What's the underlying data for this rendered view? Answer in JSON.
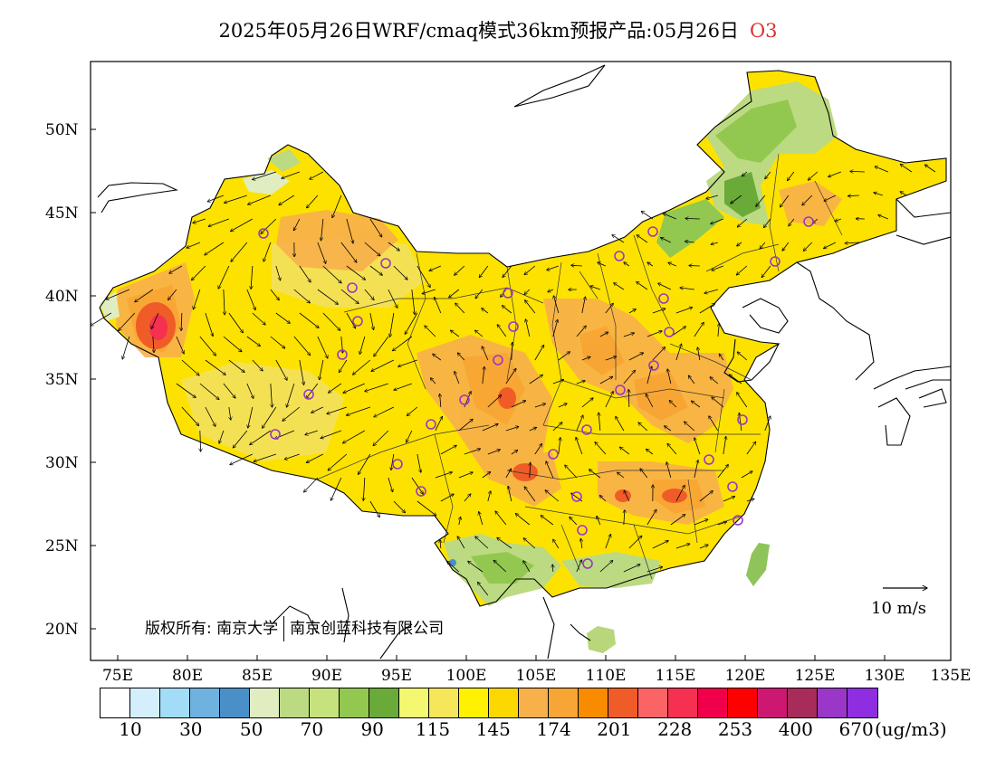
{
  "title": {
    "text": "2025年05月26日WRF/cmaq模式36km预报产品:05月26日",
    "species": "O3",
    "species_color": "#e03030"
  },
  "axes": {
    "y_labels": [
      "50N",
      "45N",
      "40N",
      "35N",
      "30N",
      "25N",
      "20N"
    ],
    "x_labels": [
      "75E",
      "80E",
      "85E",
      "90E",
      "95E",
      "100E",
      "105E",
      "110E",
      "115E",
      "120E",
      "125E",
      "130E",
      "135E"
    ]
  },
  "copyright": {
    "part1": "版权所有: 南京大学",
    "part2": "南京创蓝科技有限公司"
  },
  "wind_reference": {
    "label": "10 m/s"
  },
  "colorbar": {
    "colors": [
      "#ffffff",
      "#d4eefc",
      "#a2dcf7",
      "#6fb2e0",
      "#4a90c8",
      "#e0edc0",
      "#bcda82",
      "#c6e27c",
      "#92c850",
      "#6aaa38",
      "#f4f870",
      "#f5e65a",
      "#fff100",
      "#fdd800",
      "#f8b04a",
      "#f7a534",
      "#f88b00",
      "#f05c28",
      "#fa6464",
      "#f53050",
      "#f0004a",
      "#ff0000",
      "#cc1870",
      "#a82c5a",
      "#9a36c8",
      "#8e2ee0"
    ],
    "tick_labels": [
      "10",
      "30",
      "50",
      "70",
      "90",
      "115",
      "145",
      "174",
      "201",
      "228",
      "253",
      "400",
      "670"
    ],
    "unit": "(ug/m3)"
  },
  "map": {
    "extent_deg": {
      "lon": [
        73,
        135
      ],
      "lat": [
        18,
        54
      ]
    },
    "background_color": "#ffffff",
    "land_fill_color": "#fde200",
    "station_marker_color": "#9a36c8",
    "station_count": 31
  }
}
